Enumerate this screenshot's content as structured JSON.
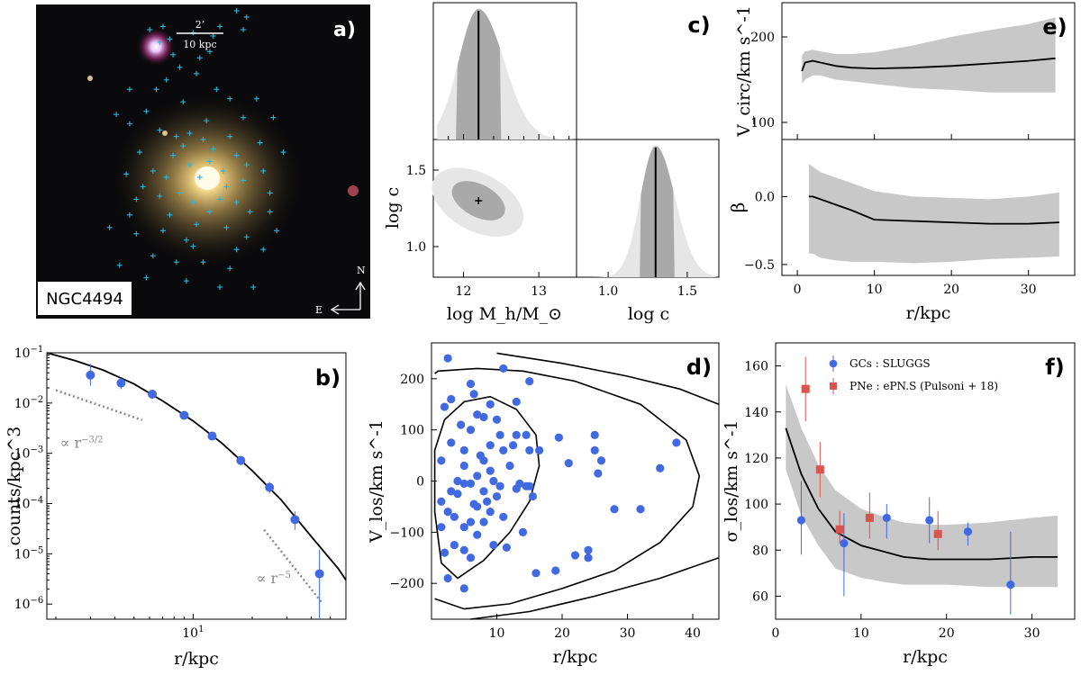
{
  "chart_data": [
    {
      "id": "a",
      "type": "image",
      "panel_label": "a)",
      "galaxy_label": "NGC4494",
      "scale_top": "2’",
      "scale_bottom": "10 kpc",
      "compass_n": "N",
      "compass_e": "E",
      "gc_marker_color": "#2cb4d8",
      "gc_markers": [
        [
          0.47,
          0.09
        ],
        [
          0.34,
          0.08
        ],
        [
          0.37,
          0.12
        ],
        [
          0.38,
          0.07
        ],
        [
          0.4,
          0.11
        ],
        [
          0.41,
          0.16
        ],
        [
          0.52,
          0.15
        ],
        [
          0.53,
          0.1
        ],
        [
          0.55,
          0.07
        ],
        [
          0.6,
          0.02
        ],
        [
          0.63,
          0.04
        ],
        [
          0.62,
          0.08
        ],
        [
          0.49,
          0.17
        ],
        [
          0.43,
          0.2
        ],
        [
          0.39,
          0.24
        ],
        [
          0.28,
          0.27
        ],
        [
          0.24,
          0.35
        ],
        [
          0.33,
          0.34
        ],
        [
          0.48,
          0.22
        ],
        [
          0.54,
          0.27
        ],
        [
          0.37,
          0.4
        ],
        [
          0.42,
          0.42
        ],
        [
          0.46,
          0.41
        ],
        [
          0.5,
          0.43
        ],
        [
          0.53,
          0.46
        ],
        [
          0.58,
          0.42
        ],
        [
          0.6,
          0.48
        ],
        [
          0.63,
          0.51
        ],
        [
          0.41,
          0.48
        ],
        [
          0.46,
          0.51
        ],
        [
          0.49,
          0.55
        ],
        [
          0.52,
          0.5
        ],
        [
          0.56,
          0.53
        ],
        [
          0.62,
          0.56
        ],
        [
          0.68,
          0.53
        ],
        [
          0.7,
          0.6
        ],
        [
          0.35,
          0.53
        ],
        [
          0.32,
          0.58
        ],
        [
          0.3,
          0.62
        ],
        [
          0.37,
          0.61
        ],
        [
          0.43,
          0.6
        ],
        [
          0.47,
          0.63
        ],
        [
          0.55,
          0.62
        ],
        [
          0.6,
          0.63
        ],
        [
          0.64,
          0.66
        ],
        [
          0.7,
          0.66
        ],
        [
          0.28,
          0.67
        ],
        [
          0.4,
          0.67
        ],
        [
          0.52,
          0.66
        ],
        [
          0.48,
          0.7
        ],
        [
          0.57,
          0.71
        ],
        [
          0.22,
          0.71
        ],
        [
          0.3,
          0.73
        ],
        [
          0.38,
          0.72
        ],
        [
          0.45,
          0.75
        ],
        [
          0.63,
          0.74
        ],
        [
          0.72,
          0.72
        ],
        [
          0.68,
          0.78
        ],
        [
          0.35,
          0.8
        ],
        [
          0.42,
          0.82
        ],
        [
          0.5,
          0.82
        ],
        [
          0.58,
          0.84
        ],
        [
          0.25,
          0.83
        ],
        [
          0.33,
          0.87
        ],
        [
          0.45,
          0.88
        ],
        [
          0.55,
          0.9
        ],
        [
          0.65,
          0.9
        ],
        [
          0.22,
          0.91
        ],
        [
          0.28,
          0.38
        ],
        [
          0.66,
          0.3
        ],
        [
          0.71,
          0.36
        ],
        [
          0.44,
          0.31
        ],
        [
          0.36,
          0.27
        ],
        [
          0.62,
          0.36
        ],
        [
          0.58,
          0.3
        ],
        [
          0.31,
          0.47
        ],
        [
          0.74,
          0.47
        ],
        [
          0.27,
          0.54
        ],
        [
          0.67,
          0.44
        ],
        [
          0.39,
          0.55
        ],
        [
          0.57,
          0.58
        ],
        [
          0.44,
          0.45
        ],
        [
          0.51,
          0.37
        ],
        [
          0.47,
          0.77
        ],
        [
          0.6,
          0.78
        ]
      ]
    },
    {
      "id": "b",
      "type": "line+scatter",
      "panel_label": "b)",
      "xscale": "log",
      "yscale": "log",
      "xlim": [
        1.8,
        60
      ],
      "ylim": [
        5e-07,
        0.1
      ],
      "xlabel": "r/kpc",
      "ylabel": "counts/kpc^3",
      "xticks": [
        {
          "v": 10,
          "label": "10",
          "sup": "1"
        }
      ],
      "yticks": [
        {
          "v": 1e-06,
          "label": "10",
          "sup": "−6"
        },
        {
          "v": 1e-05,
          "label": "10",
          "sup": "−5"
        },
        {
          "v": 0.0001,
          "label": "10",
          "sup": "−4"
        },
        {
          "v": 0.001,
          "label": "10",
          "sup": "−3"
        },
        {
          "v": 0.01,
          "label": "10",
          "sup": "−2"
        },
        {
          "v": 0.1,
          "label": "10",
          "sup": "−1"
        }
      ],
      "model": {
        "x": [
          1.8,
          2.5,
          3.5,
          5,
          7,
          10,
          14,
          20,
          28,
          40,
          55,
          60
        ],
        "y": [
          0.1,
          0.07,
          0.045,
          0.024,
          0.011,
          0.0044,
          0.0016,
          0.00045,
          0.00012,
          2.2e-05,
          5e-06,
          3e-06
        ]
      },
      "points": [
        {
          "x": 3.0,
          "y": 0.036,
          "lo": 0.022,
          "hi": 0.06
        },
        {
          "x": 4.3,
          "y": 0.025,
          "lo": 0.019,
          "hi": 0.031
        },
        {
          "x": 6.2,
          "y": 0.015,
          "lo": 0.013,
          "hi": 0.017
        },
        {
          "x": 9.0,
          "y": 0.0057,
          "lo": 0.0049,
          "hi": 0.0065
        },
        {
          "x": 12.5,
          "y": 0.0022,
          "lo": 0.0019,
          "hi": 0.0025
        },
        {
          "x": 17.5,
          "y": 0.00072,
          "lo": 0.00058,
          "hi": 0.00088
        },
        {
          "x": 24.5,
          "y": 0.00021,
          "lo": 0.00016,
          "hi": 0.00027
        },
        {
          "x": 33.0,
          "y": 4.8e-05,
          "lo": 3e-05,
          "hi": 7e-05
        },
        {
          "x": 44.0,
          "y": 4e-06,
          "lo": 5e-07,
          "hi": 1.2e-05
        }
      ],
      "slopes": [
        {
          "label": "∝ r",
          "sup": "−3/2",
          "x": [
            2.0,
            5.5
          ],
          "y": [
            0.018,
            0.0046
          ]
        },
        {
          "label": "∝ r",
          "sup": "−5",
          "x": [
            23,
            45
          ],
          "y": [
            3e-05,
            1.1e-06
          ]
        }
      ]
    },
    {
      "id": "c",
      "type": "corner",
      "panel_label": "c)",
      "xlabel_mass": "log M_h/M_⊙",
      "xlabel_c": "log c",
      "ylabel_c": "log c",
      "mass_range": [
        11.6,
        13.5
      ],
      "c_range": [
        0.8,
        1.7
      ],
      "mass_ticks": [
        {
          "v": 12,
          "label": "12"
        },
        {
          "v": 13,
          "label": "13"
        }
      ],
      "c_ticks": [
        {
          "v": 1.0,
          "label": "1.0"
        },
        {
          "v": 1.5,
          "label": "1.5"
        }
      ],
      "mass_best": 12.2,
      "mass_1sigma": [
        11.9,
        12.5
      ],
      "mass_2sigma": [
        11.75,
        12.85
      ],
      "c_best": 1.3,
      "c_1sigma": [
        1.2,
        1.42
      ],
      "c_2sigma": [
        1.08,
        1.55
      ]
    },
    {
      "id": "d",
      "type": "scatter",
      "panel_label": "d)",
      "xlim": [
        0,
        44
      ],
      "ylim": [
        -270,
        270
      ],
      "xlabel": "r/kpc",
      "ylabel": "V_los/km s^-1",
      "xticks": [
        10,
        20,
        30,
        40
      ],
      "yticks": [
        -200,
        -100,
        0,
        100,
        200
      ],
      "points": [
        [
          2.5,
          240
        ],
        [
          3,
          -20
        ],
        [
          1.5,
          40
        ],
        [
          1.5,
          -90
        ],
        [
          2,
          -140
        ],
        [
          2.5,
          -190
        ],
        [
          2,
          145
        ],
        [
          3,
          160
        ],
        [
          3.5,
          -125
        ],
        [
          3.5,
          -70
        ],
        [
          4,
          0
        ],
        [
          4,
          -25
        ],
        [
          5,
          -5
        ],
        [
          5,
          -90
        ],
        [
          5,
          -135
        ],
        [
          5,
          -210
        ],
        [
          4.5,
          110
        ],
        [
          5,
          60
        ],
        [
          5,
          30
        ],
        [
          6,
          -80
        ],
        [
          6,
          -150
        ],
        [
          6,
          190
        ],
        [
          6.5,
          170
        ],
        [
          6,
          100
        ],
        [
          6.5,
          -45
        ],
        [
          7,
          130
        ],
        [
          7,
          -105
        ],
        [
          7,
          -50
        ],
        [
          7,
          10
        ],
        [
          7.5,
          50
        ],
        [
          8,
          125
        ],
        [
          8,
          -20
        ],
        [
          8,
          -80
        ],
        [
          8.5,
          -40
        ],
        [
          9,
          20
        ],
        [
          9,
          -60
        ],
        [
          9,
          150
        ],
        [
          9,
          70
        ],
        [
          9.5,
          0
        ],
        [
          9.5,
          -125
        ],
        [
          10,
          120
        ],
        [
          10,
          -30
        ],
        [
          10.5,
          90
        ],
        [
          10.5,
          -10
        ],
        [
          11,
          220
        ],
        [
          11,
          60
        ],
        [
          11,
          -70
        ],
        [
          11.5,
          -130
        ],
        [
          12,
          30
        ],
        [
          12.5,
          70
        ],
        [
          13,
          -15
        ],
        [
          13,
          90
        ],
        [
          13,
          155
        ],
        [
          13.5,
          -5
        ],
        [
          14,
          -100
        ],
        [
          14.5,
          -10
        ],
        [
          14.5,
          90
        ],
        [
          15,
          60
        ],
        [
          15,
          195
        ],
        [
          15,
          -10
        ],
        [
          15.5,
          -30
        ],
        [
          16,
          -180
        ],
        [
          16.5,
          60
        ],
        [
          19,
          -175
        ],
        [
          19.5,
          85
        ],
        [
          21,
          35
        ],
        [
          22,
          -145
        ],
        [
          24,
          -150
        ],
        [
          24,
          -135
        ],
        [
          25,
          90
        ],
        [
          25,
          60
        ],
        [
          25.5,
          15
        ],
        [
          26,
          40
        ],
        [
          28,
          -55
        ],
        [
          32,
          -55
        ],
        [
          35,
          25
        ],
        [
          37.5,
          75
        ],
        [
          1.5,
          -40
        ],
        [
          2.5,
          -60
        ],
        [
          3,
          75
        ],
        [
          6,
          -5
        ],
        [
          8,
          40
        ]
      ],
      "contours": [
        {
          "x": [
            1.5,
            4,
            8,
            12,
            15,
            16.5,
            16,
            13,
            9,
            5,
            2,
            0.5,
            0.5,
            1.5
          ],
          "y": [
            -160,
            -190,
            -155,
            -100,
            -40,
            30,
            90,
            140,
            165,
            155,
            120,
            60,
            -60,
            -160
          ]
        },
        {
          "x": [
            0.5,
            5,
            12,
            20,
            28,
            35,
            40,
            41,
            39,
            32,
            22,
            14,
            7,
            1,
            0.5
          ],
          "y": [
            -230,
            -250,
            -240,
            -210,
            -175,
            -120,
            -50,
            10,
            80,
            150,
            195,
            215,
            220,
            215,
            210
          ]
        },
        {
          "x": [
            10,
            20,
            30,
            38,
            44
          ],
          "y": [
            250,
            230,
            205,
            180,
            150
          ]
        },
        {
          "x": [
            6,
            15,
            25,
            35,
            44
          ],
          "y": [
            -270,
            -255,
            -225,
            -190,
            -150
          ]
        }
      ]
    },
    {
      "id": "e",
      "type": "area+line",
      "panel_label": "e)",
      "xlim": [
        -2,
        36
      ],
      "xlabel": "r/kpc",
      "xticks": [
        0,
        10,
        20,
        30
      ],
      "vcirc": {
        "ylabel": "V_circ/km s^-1",
        "ylim": [
          80,
          240
        ],
        "yticks": [
          100,
          200
        ],
        "x": [
          0.6,
          1,
          2,
          3,
          5,
          7,
          10,
          15,
          20,
          25,
          30,
          33.5
        ],
        "y": [
          160,
          170,
          172,
          170,
          166,
          164,
          163,
          164,
          166,
          169,
          172,
          175
        ],
        "lo": [
          145,
          150,
          155,
          155,
          150,
          148,
          145,
          140,
          138,
          135,
          135,
          135
        ],
        "hi": [
          178,
          183,
          185,
          183,
          180,
          180,
          182,
          190,
          200,
          208,
          215,
          223
        ]
      },
      "beta": {
        "ylabel": "β",
        "ylim": [
          -0.58,
          0.42
        ],
        "yticks": [
          -0.5,
          0.0
        ],
        "x": [
          1.5,
          2,
          3,
          5,
          7,
          10,
          15,
          20,
          25,
          30,
          34
        ],
        "y": [
          0.0,
          0.0,
          -0.02,
          -0.06,
          -0.1,
          -0.17,
          -0.18,
          -0.19,
          -0.2,
          -0.2,
          -0.19
        ],
        "lo": [
          -0.42,
          -0.42,
          -0.45,
          -0.47,
          -0.48,
          -0.48,
          -0.49,
          -0.48,
          -0.46,
          -0.45,
          -0.44
        ],
        "hi": [
          0.24,
          0.22,
          0.18,
          0.14,
          0.1,
          0.04,
          0.0,
          -0.01,
          -0.02,
          0.0,
          0.03
        ]
      }
    },
    {
      "id": "f",
      "type": "area+line+scatter",
      "panel_label": "f)",
      "xlim": [
        0,
        35
      ],
      "ylim": [
        50,
        170
      ],
      "xlabel": "r/kpc",
      "ylabel": "σ_los/km s^-1",
      "xticks": [
        0,
        10,
        20,
        30
      ],
      "yticks": [
        60,
        80,
        100,
        120,
        140,
        160
      ],
      "model": {
        "x": [
          1.2,
          3,
          5,
          7,
          10,
          13,
          15,
          18,
          20,
          25,
          30,
          33
        ],
        "y": [
          133,
          113,
          98,
          88,
          82,
          79,
          77,
          76,
          76,
          76,
          77,
          77
        ],
        "lo": [
          115,
          95,
          82,
          72,
          68,
          66,
          65,
          65,
          65,
          64,
          64,
          64
        ],
        "hi": [
          152,
          133,
          117,
          106,
          98,
          94,
          92,
          91,
          91,
          92,
          94,
          95
        ]
      },
      "legend": [
        {
          "label": "GCs : SLUGGS",
          "color": "#4169e1",
          "marker": "circle"
        },
        {
          "label": "PNe : ePN.S (Pulsoni + 18)",
          "color": "#d9534f",
          "marker": "square"
        }
      ],
      "gcs": [
        {
          "x": 3.0,
          "y": 93,
          "lo": 78,
          "hi": 110
        },
        {
          "x": 8.0,
          "y": 83,
          "lo": 60,
          "hi": 96
        },
        {
          "x": 13.0,
          "y": 94,
          "lo": 85,
          "hi": 100
        },
        {
          "x": 18.0,
          "y": 93,
          "lo": 83,
          "hi": 103
        },
        {
          "x": 22.5,
          "y": 88,
          "lo": 82,
          "hi": 92
        },
        {
          "x": 27.5,
          "y": 65,
          "lo": 52,
          "hi": 88
        }
      ],
      "pne": [
        {
          "x": 3.5,
          "y": 150,
          "lo": 136,
          "hi": 164
        },
        {
          "x": 5.2,
          "y": 115,
          "lo": 103,
          "hi": 127
        },
        {
          "x": 7.5,
          "y": 89,
          "lo": 83,
          "hi": 97
        },
        {
          "x": 11.0,
          "y": 94,
          "lo": 85,
          "hi": 105
        },
        {
          "x": 19.0,
          "y": 87,
          "lo": 80,
          "hi": 97
        }
      ]
    }
  ],
  "colors": {
    "blue": "#4169e1",
    "red": "#d9534f",
    "band": "#c8c8c8",
    "band_dark": "#a9a9a9",
    "band_light": "#e6e6e6"
  }
}
